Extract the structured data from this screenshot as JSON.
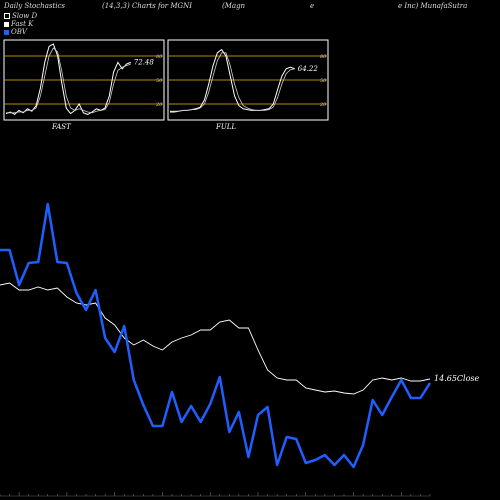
{
  "header": {
    "title": "Daily Stochastics",
    "params": "(14,3,3) Charts for MGNI",
    "company_part1": "(Magn",
    "company_part2": "e",
    "company_part3": "e Inc) MunafaSutra"
  },
  "legend": [
    {
      "label": "Slow  D",
      "color": "#ffffff",
      "boxed": true
    },
    {
      "label": "Fast K",
      "color": "#ffffff",
      "boxed": false
    },
    {
      "label": "OBV",
      "color": "#1f5fff",
      "boxed": false
    }
  ],
  "colors": {
    "obv": "#1f5fff",
    "close": "#ffffff",
    "band": "#b8860b",
    "panel_border": "#ffffff"
  },
  "chart_data": [
    {
      "type": "line",
      "title": "FAST",
      "ylim": [
        0,
        100
      ],
      "levels": [
        20,
        50,
        80
      ],
      "level_labels": [
        "80",
        "50",
        "20"
      ],
      "last_label": "72.48",
      "series": [
        {
          "name": "Fast K",
          "values": [
            8,
            10,
            7,
            12,
            9,
            14,
            11,
            18,
            40,
            72,
            92,
            95,
            80,
            45,
            15,
            8,
            12,
            20,
            9,
            7,
            10,
            14,
            12,
            15,
            30,
            60,
            72,
            64,
            70,
            72
          ]
        },
        {
          "name": "Slow  D",
          "values": [
            9,
            9,
            9,
            10,
            10,
            12,
            12,
            15,
            30,
            55,
            80,
            90,
            85,
            60,
            30,
            15,
            12,
            14,
            12,
            10,
            9,
            11,
            12,
            13,
            22,
            45,
            62,
            66,
            68,
            70
          ]
        }
      ]
    },
    {
      "type": "line",
      "title": "FULL",
      "ylim": [
        0,
        100
      ],
      "levels": [
        20,
        50,
        80
      ],
      "level_labels": [
        "80",
        "50",
        "20"
      ],
      "last_label": "64.22",
      "series": [
        {
          "name": "K",
          "values": [
            10,
            10,
            11,
            12,
            12,
            13,
            14,
            16,
            25,
            45,
            68,
            84,
            88,
            80,
            55,
            30,
            18,
            14,
            13,
            12,
            12,
            12,
            13,
            14,
            20,
            38,
            55,
            64,
            66,
            64
          ]
        },
        {
          "name": "D",
          "values": [
            11,
            11,
            11,
            12,
            12,
            13,
            13,
            15,
            20,
            35,
            55,
            74,
            84,
            84,
            68,
            45,
            28,
            18,
            15,
            13,
            12,
            12,
            12,
            13,
            16,
            28,
            45,
            58,
            63,
            64
          ]
        }
      ]
    },
    {
      "type": "line",
      "title": "",
      "close_label": "14.65Close",
      "series": [
        {
          "name": "OBV",
          "values": [
            250,
            250,
            285,
            263,
            262,
            204,
            262,
            263,
            293,
            310,
            290,
            338,
            352,
            326,
            380,
            405,
            426,
            426,
            392,
            422,
            406,
            422,
            404,
            377,
            432,
            412,
            457,
            415,
            407,
            465,
            437,
            439,
            463,
            460,
            455,
            465,
            455,
            467,
            445,
            400,
            415,
            397,
            380,
            398,
            398,
            383
          ]
        },
        {
          "name": "Close",
          "values": [
            285,
            283,
            290,
            290,
            287,
            290,
            288,
            297,
            303,
            305,
            303,
            318,
            325,
            338,
            345,
            340,
            346,
            350,
            342,
            338,
            335,
            330,
            330,
            322,
            320,
            328,
            328,
            350,
            370,
            378,
            380,
            380,
            388,
            390,
            392,
            391,
            393,
            394,
            390,
            380,
            378,
            380,
            378,
            381,
            381,
            379
          ]
        }
      ]
    }
  ]
}
